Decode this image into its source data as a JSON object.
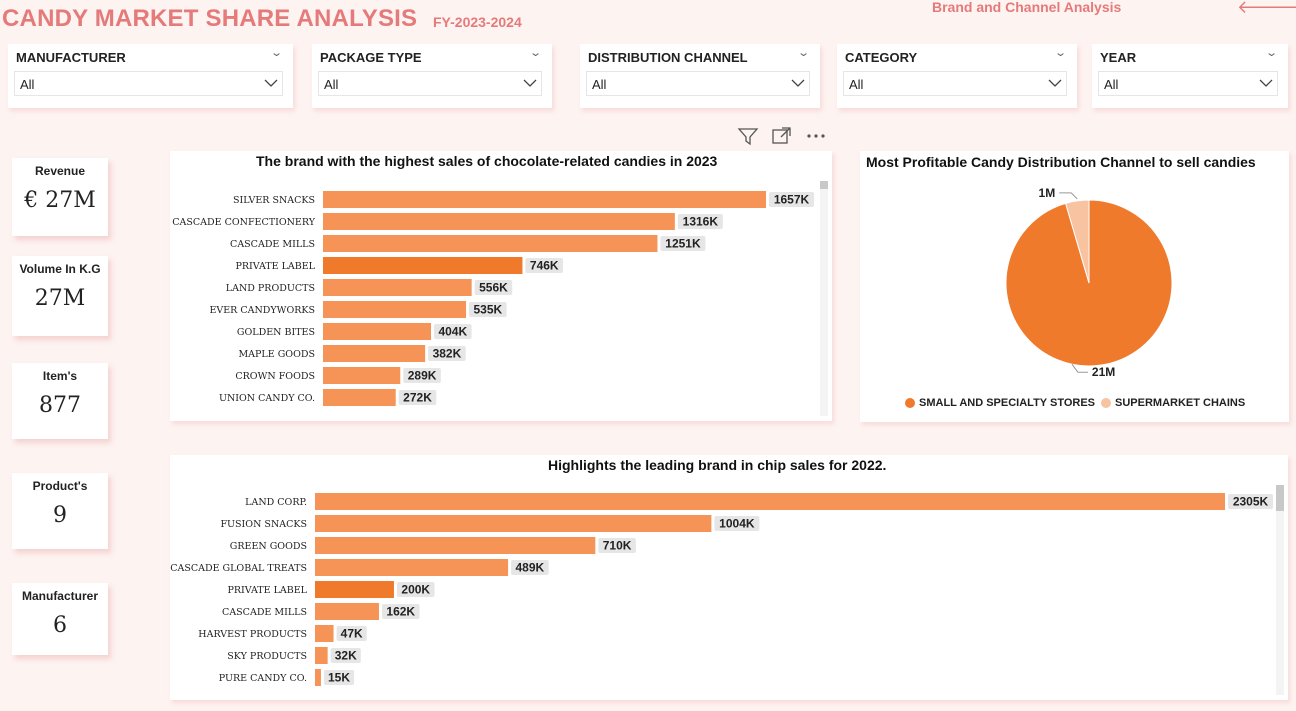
{
  "header": {
    "title": "CANDY MARKET SHARE ANALYSIS",
    "subtitle": "FY-2023-2024",
    "page_name": "Brand and Channel Analysis",
    "nav_back": "🡐",
    "nav_forward": "🡒"
  },
  "slicers": [
    {
      "label": "MANUFACTURER",
      "value": "All"
    },
    {
      "label": "PACKAGE TYPE",
      "value": "All"
    },
    {
      "label": "DISTRIBUTION CHANNEL",
      "value": "All"
    },
    {
      "label": "CATEGORY",
      "value": "All"
    },
    {
      "label": "YEAR",
      "value": "All"
    }
  ],
  "kpis": [
    {
      "label": "Revenue",
      "value": "€ 27M"
    },
    {
      "label": "Volume In K.G",
      "value": "27M"
    },
    {
      "label": "Item's",
      "value": "877"
    },
    {
      "label": "Product's",
      "value": "9"
    },
    {
      "label": "Manufacturer",
      "value": "6"
    }
  ],
  "colors": {
    "accent": "#e57a7a",
    "bar": "#f59456",
    "bar_highlight": "#f07a2c",
    "pie_main": "#f07a2c",
    "pie_minor": "#f8c3a0"
  },
  "chart_data": [
    {
      "type": "bar",
      "orientation": "horizontal",
      "title": "The brand with the highest sales of chocolate-related candies in 2023",
      "categories": [
        "SILVER SNACKS",
        "CASCADE CONFECTIONERY",
        "CASCADE MILLS",
        "PRIVATE LABEL",
        "LAND PRODUCTS",
        "EVER CANDYWORKS",
        "GOLDEN BITES",
        "MAPLE GOODS",
        "CROWN FOODS",
        "UNION CANDY CO."
      ],
      "values": [
        1657,
        1316,
        1251,
        746,
        556,
        535,
        404,
        382,
        289,
        272
      ],
      "labels": [
        "1657K",
        "1316K",
        "1251K",
        "746K",
        "556K",
        "535K",
        "404K",
        "382K",
        "289K",
        "272K"
      ],
      "highlight": "PRIVATE LABEL"
    },
    {
      "type": "pie",
      "title": "Most Profitable Candy Distribution Channel to sell candies",
      "categories": [
        "SMALL AND SPECIALTY STORES",
        "SUPERMARKET CHAINS"
      ],
      "values": [
        21,
        1
      ],
      "labels": [
        "21M",
        "1M"
      ],
      "legend": "bottom"
    },
    {
      "type": "bar",
      "orientation": "horizontal",
      "title": "Highlights the leading brand in chip sales for 2022.",
      "categories": [
        "LAND CORP.",
        "FUSION SNACKS",
        "GREEN GOODS",
        "CASCADE GLOBAL TREATS",
        "PRIVATE LABEL",
        "CASCADE MILLS",
        "HARVEST PRODUCTS",
        "SKY PRODUCTS",
        "PURE CANDY CO."
      ],
      "values": [
        2305,
        1004,
        710,
        489,
        200,
        162,
        47,
        32,
        15
      ],
      "labels": [
        "2305K",
        "1004K",
        "710K",
        "489K",
        "200K",
        "162K",
        "47K",
        "32K",
        "15K"
      ],
      "highlight": "PRIVATE LABEL"
    }
  ]
}
